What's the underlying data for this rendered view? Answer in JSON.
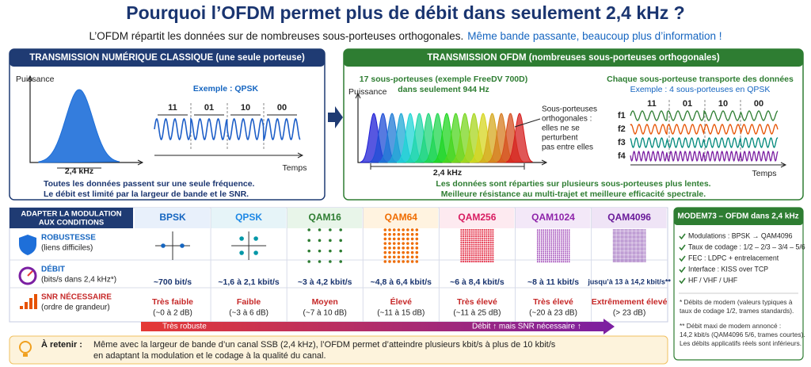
{
  "header": {
    "title": "Pourquoi l’OFDM permet plus de débit dans seulement 2,4 kHz ?",
    "subtitle": "L’OFDM répartit les données sur de nombreuses sous-porteuses orthogonales.",
    "subtitle_highlight": "Même bande passante, beaucoup plus d’information !"
  },
  "classic": {
    "title": "TRANSMISSION NUMÉRIQUE CLASSIQUE (une seule porteuse)",
    "y_label": "Puissance",
    "x_label": "Temps",
    "bandwidth": "2,4 kHz",
    "example": "Exemple : QPSK",
    "bits": [
      "11",
      "01",
      "10",
      "00"
    ],
    "caption": [
      "Toutes les données passent sur une seule fréquence.",
      "Le débit est limité par la largeur de bande et le SNR."
    ]
  },
  "ofdm": {
    "title": "TRANSMISSION OFDM (nombreuses sous-porteuses orthogonales)",
    "y_label": "Puissance",
    "x_label": "Temps",
    "bandwidth": "2,4 kHz",
    "subcarriers": [
      "17 sous-porteuses (exemple FreeDV 700D)",
      "dans seulement 944 Hz"
    ],
    "note": [
      "Sous-porteuses",
      "orthogonales :",
      "elles ne se",
      "perturbent",
      "pas entre elles"
    ],
    "right_title": "Chaque sous-porteuse transporte des données",
    "right_example": "Exemple : 4 sous-porteuses en QPSK",
    "bits": [
      "11",
      "01",
      "10",
      "00"
    ],
    "freqs": [
      "f1",
      "f2",
      "f3",
      "f4"
    ],
    "caption": [
      "Les données sont réparties sur plusieurs sous-porteuses plus lentes.",
      "Meilleure résistance au multi-trajet et meilleure efficacité spectrale."
    ]
  },
  "table": {
    "header": [
      "ADAPTER LA MODULATION",
      "AUX CONDITIONS"
    ],
    "rows": [
      {
        "title": "ROBUSTESSE",
        "sub": "(liens difficiles)"
      },
      {
        "title": "DÉBIT",
        "sub": "(bits/s dans 2,4 kHz*)"
      },
      {
        "title": "SNR NÉCESSAIRE",
        "sub": "(ordre de grandeur)"
      }
    ],
    "columns": [
      {
        "name": "BPSK",
        "rate": "~700 bit/s",
        "level": "Très faible",
        "snr": "(~0 à 2 dB)"
      },
      {
        "name": "QPSK",
        "rate": "~1,6 à 2,1 kbit/s",
        "level": "Faible",
        "snr": "(~3 à 6 dB)"
      },
      {
        "name": "QAM16",
        "rate": "~3 à 4,2 kbit/s",
        "level": "Moyen",
        "snr": "(~7 à 10 dB)"
      },
      {
        "name": "QAM64",
        "rate": "~4,8 à 6,4 kbit/s",
        "level": "Élevé",
        "snr": "(~11 à 15 dB)"
      },
      {
        "name": "QAM256",
        "rate": "~6 à 8,4 kbit/s",
        "level": "Très élevé",
        "snr": "(~11 à 25 dB)"
      },
      {
        "name": "QAM1024",
        "rate": "~8 à 11 kbit/s",
        "level": "Très élevé",
        "snr": "(~20 à 23 dB)"
      },
      {
        "name": "QAM4096",
        "rate": "jusqu’à 13 à 14,2 kbit/s**",
        "level": "Extrêmement élevé",
        "snr": "(> 23 dB)"
      }
    ],
    "arrow_left": "Très robuste",
    "arrow_right": "Débit ↑ mais SNR nécessaire ↑"
  },
  "sidebar": {
    "title": "MODEM73 – OFDM dans 2,4 kHz",
    "items": [
      "Modulations : BPSK → QAM4096",
      "Taux de codage : 1/2 – 2/3 – 3/4 – 5/6",
      "FEC : LDPC + entrelacement",
      "Interface : KISS over TCP",
      "HF / VHF / UHF"
    ],
    "note1": [
      "* Débits de modem (valeurs typiques à",
      "taux de codage 1/2, trames standards)."
    ],
    "note2": [
      "** Débit maxi de modem annoncé :",
      "14,2 kbit/s (QAM4096 5/6, trames courtes).",
      "Les débits applicatifs réels sont inférieurs."
    ]
  },
  "footer": {
    "label": "À retenir :",
    "lines": [
      "Même avec la largeur de bande d’un canal SSB (2,4 kHz), l’OFDM permet d’atteindre plusieurs kbit/s à plus de 10 kbit/s",
      "en adaptant la modulation et le codage à la qualité du canal."
    ]
  }
}
